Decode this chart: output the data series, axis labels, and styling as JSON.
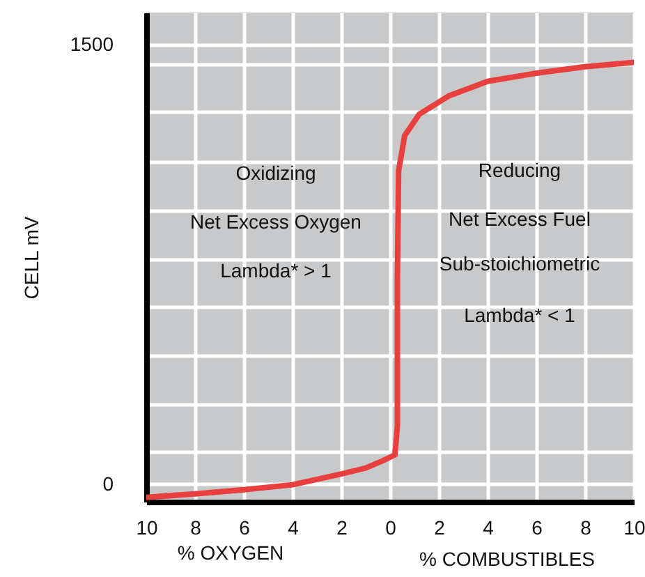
{
  "chart_data": {
    "type": "line",
    "ylabel": "CELL  mV",
    "xlabel": "% OXYGEN",
    "xlim": [
      -10,
      10
    ],
    "xticks": [
      {
        "value": -10,
        "label": "10"
      },
      {
        "value": -8,
        "label": "8"
      },
      {
        "value": -6,
        "label": "6"
      },
      {
        "value": -4,
        "label": "4"
      },
      {
        "value": -2,
        "label": "2"
      },
      0,
      2,
      4,
      6,
      8,
      10
    ],
    "ylim": [
      -60,
      1610
    ],
    "yticks": [
      0,
      {
        "value": 110,
        "label": null
      },
      {
        "value": 275,
        "label": null
      },
      {
        "value": 440,
        "label": null
      },
      {
        "value": 605,
        "label": null
      },
      {
        "value": 770,
        "label": null
      },
      {
        "value": 935,
        "label": null
      },
      {
        "value": 1100,
        "label": null
      },
      {
        "value": 1270,
        "label": null
      },
      {
        "value": 1435,
        "label": null
      },
      1500
    ],
    "grid": true,
    "marker": "none",
    "line_style": "solid",
    "series": [
      {
        "color": "#e8403f",
        "x": [
          -10,
          -8,
          -6,
          -4,
          -2,
          -1,
          -0.3,
          0.2,
          0.3,
          0.3,
          0.35,
          0.6,
          1.2,
          2.4,
          4,
          6,
          8,
          10
        ],
        "values": [
          -45,
          -33,
          -19,
          -2,
          35,
          55,
          80,
          100,
          200,
          700,
          1070,
          1190,
          1263,
          1325,
          1375,
          1403,
          1425,
          1440
        ]
      }
    ],
    "annotations": [
      "Oxidizing",
      "Net Excess Oxygen",
      "Lambda* > 1",
      "Reducing",
      "Net Excess Fuel",
      "Sub-stoichiometric",
      "Lambda* < 1",
      "% COMBUSTIBLES"
    ]
  }
}
